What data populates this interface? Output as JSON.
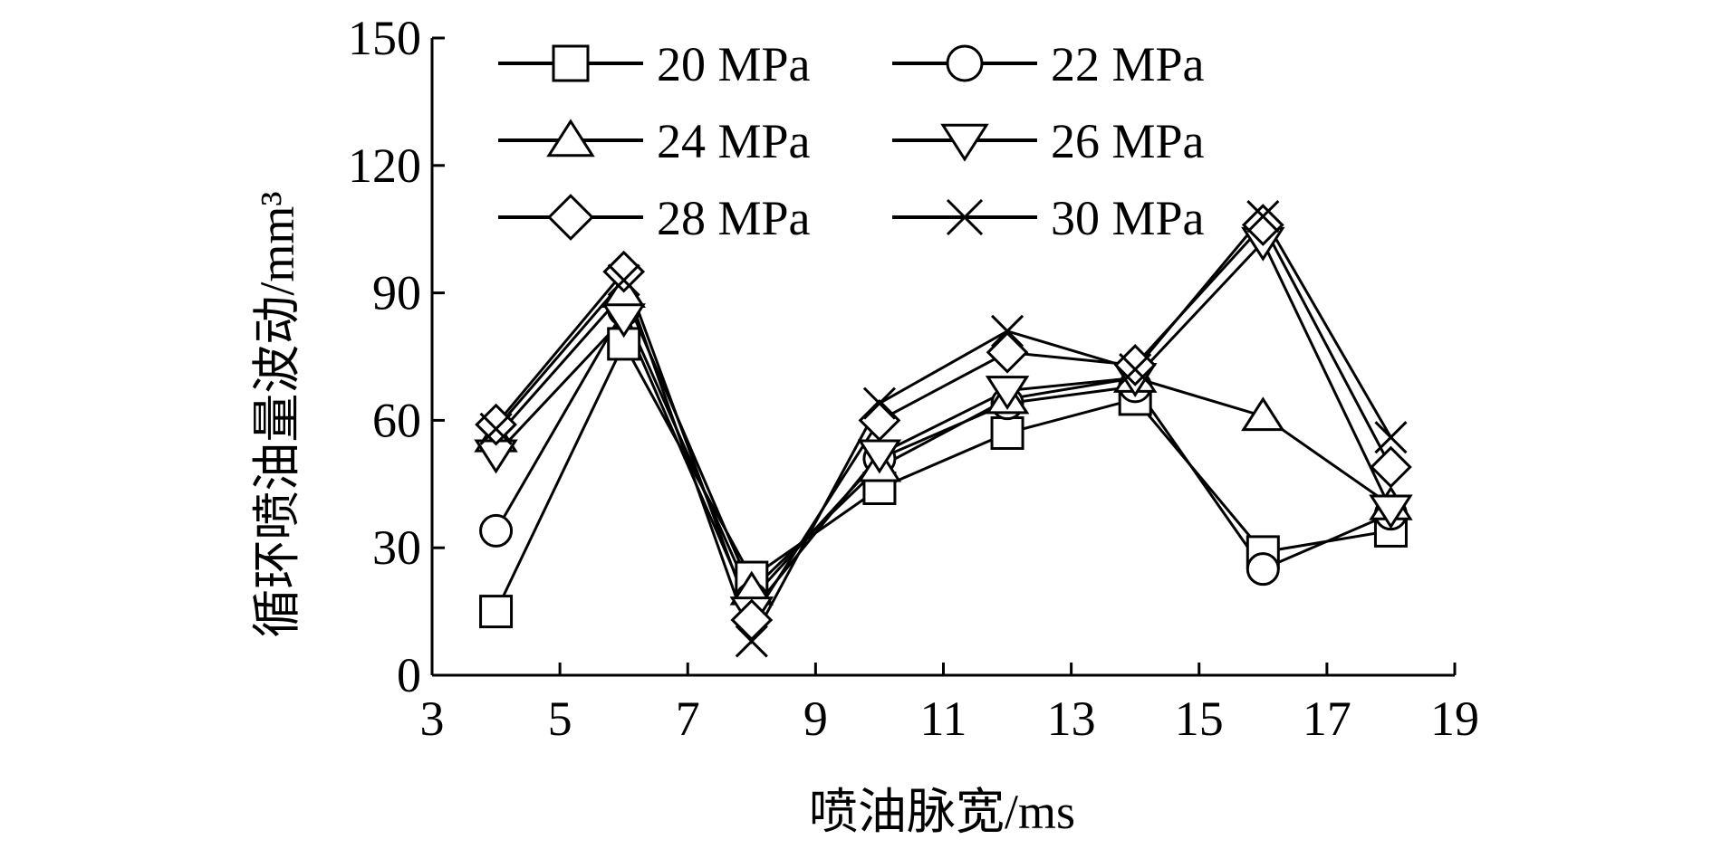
{
  "chart_data": {
    "type": "line",
    "title": "",
    "xlabel": "喷油脉宽/ms",
    "ylabel": "循环喷油量波动/mm³",
    "xlim": [
      3,
      19
    ],
    "ylim": [
      0,
      150
    ],
    "xticks": [
      3,
      5,
      7,
      9,
      11,
      13,
      15,
      17,
      19
    ],
    "yticks": [
      0,
      30,
      60,
      90,
      120,
      150
    ],
    "grid": false,
    "legend_position": "top",
    "x": [
      4,
      6,
      8,
      10,
      12,
      14,
      16,
      18
    ],
    "series": [
      {
        "name": "20 MPa",
        "marker": "square",
        "values": [
          15,
          78,
          23,
          44,
          57,
          65,
          29,
          34
        ]
      },
      {
        "name": "22 MPa",
        "marker": "circle",
        "values": [
          34,
          86,
          18,
          51,
          64,
          68,
          25,
          38
        ]
      },
      {
        "name": "24 MPa",
        "marker": "triangle-up",
        "values": [
          56,
          90,
          20,
          49,
          65,
          70,
          61,
          40
        ]
      },
      {
        "name": "26 MPa",
        "marker": "triangle-down",
        "values": [
          52,
          84,
          15,
          52,
          67,
          70,
          102,
          39
        ]
      },
      {
        "name": "28 MPa",
        "marker": "diamond",
        "values": [
          59,
          95,
          13,
          60,
          76,
          73,
          106,
          49
        ]
      },
      {
        "name": "30 MPa",
        "marker": "x",
        "values": [
          58,
          93,
          8,
          64,
          81,
          72,
          108,
          56
        ]
      }
    ]
  }
}
